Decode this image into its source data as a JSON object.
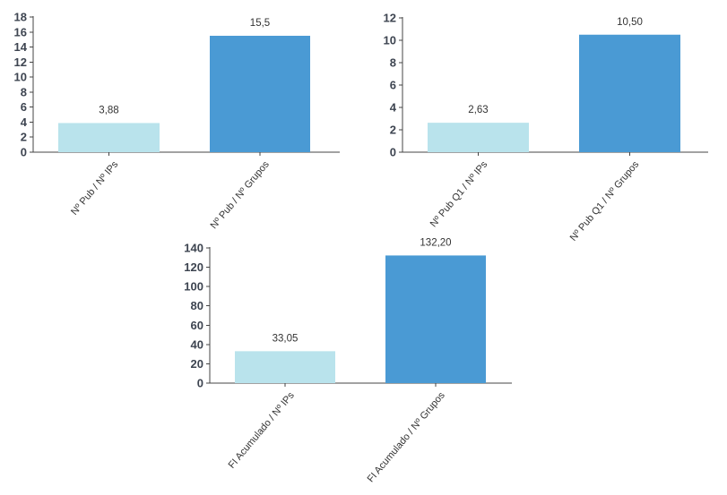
{
  "colors": {
    "light_bar": "#b9e3ec",
    "dark_bar": "#4a9ad4",
    "axis": "#444444"
  },
  "chart_data": [
    {
      "type": "bar",
      "title": "",
      "xlabel": "",
      "ylabel": "",
      "categories": [
        "Nº Pub / Nº IPs",
        "Nº Pub / Nº Grupos"
      ],
      "values": [
        3.88,
        15.5
      ],
      "value_labels": [
        "3,88",
        "15,5"
      ],
      "yticks": [
        0,
        2,
        4,
        6,
        8,
        10,
        12,
        14,
        16,
        18
      ],
      "ylim": [
        0,
        18
      ],
      "grid": false
    },
    {
      "type": "bar",
      "title": "",
      "xlabel": "",
      "ylabel": "",
      "categories": [
        "Nº Pub Q1 / Nº IPs",
        "Nº Pub Q1 / Nº Grupos"
      ],
      "values": [
        2.63,
        10.5
      ],
      "value_labels": [
        "2,63",
        "10,50"
      ],
      "yticks": [
        0,
        2,
        4,
        6,
        8,
        10,
        12
      ],
      "ylim": [
        0,
        12
      ],
      "grid": false
    },
    {
      "type": "bar",
      "title": "",
      "xlabel": "",
      "ylabel": "",
      "categories": [
        "FI Acumulado / Nº IPs",
        "FI Acumulado / Nº Grupos"
      ],
      "values": [
        33.05,
        132.2
      ],
      "value_labels": [
        "33,05",
        "132,20"
      ],
      "yticks": [
        0,
        20,
        40,
        60,
        80,
        100,
        120,
        140
      ],
      "ylim": [
        0,
        140
      ],
      "grid": false
    }
  ]
}
